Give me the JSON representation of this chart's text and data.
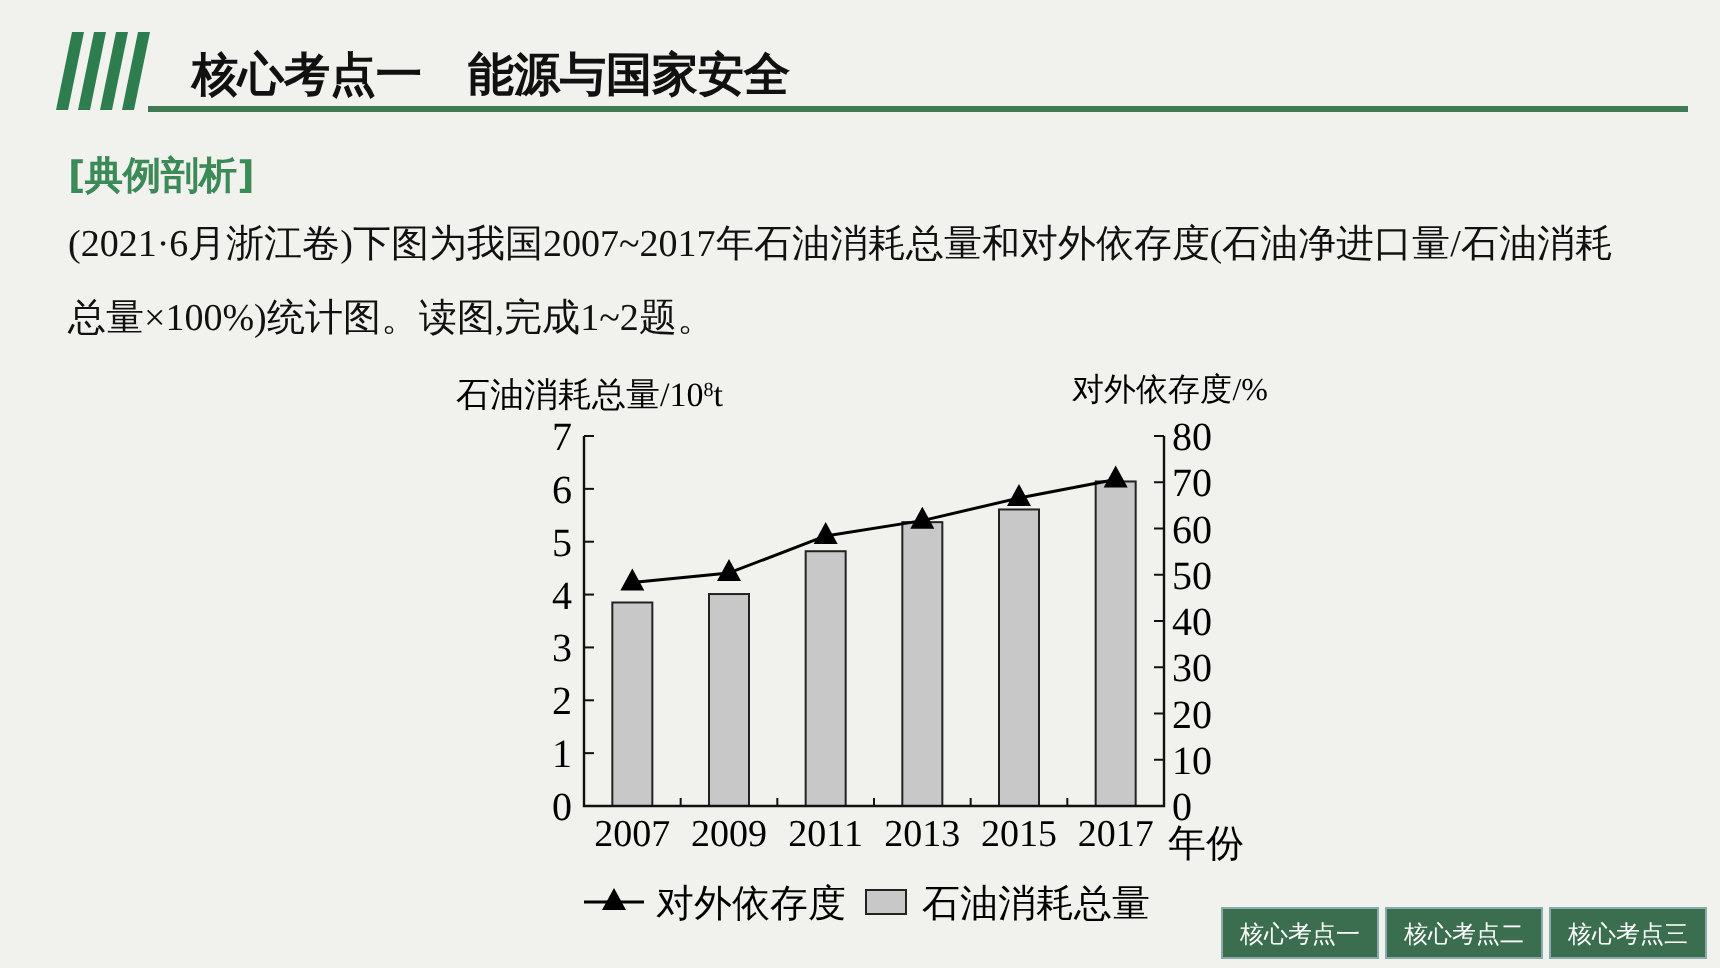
{
  "chart_data": {
    "type": "bar",
    "title": "核心考点一　能源与国家安全",
    "subtitle": "[典例剖析]",
    "annotations": [
      "(2021·6月浙江卷)下图为我国2007~2017年石油消耗总量和对外依存度(石油净进口量/石油消耗总量×100%)统计图。读图,完成1~2题。",
      "核心考点一",
      "核心考点二",
      "核心考点三"
    ],
    "categories": [
      "2007",
      "2009",
      "2011",
      "2013",
      "2015",
      "2017"
    ],
    "series": [
      {
        "name": "对外依存度",
        "type": "line",
        "axis": "y2",
        "color": "#000000",
        "marker": "triangle",
        "values": [
          48.3,
          50.4,
          58.4,
          61.7,
          66.6,
          70.6
        ]
      },
      {
        "name": "石油消耗总量",
        "type": "bar",
        "color": "#c8c8c8",
        "values": [
          3.85,
          4.01,
          4.82,
          5.37,
          5.61,
          6.14
        ]
      }
    ],
    "xlabel": "年份",
    "ylabel": "石油消耗总量/10$^{8}$t",
    "y2label": "对外依存度/%",
    "ylim": [
      0,
      7
    ],
    "yticks": [
      0,
      1,
      2,
      3,
      4,
      5,
      6,
      7
    ],
    "y2lim": [
      0,
      80
    ],
    "y2ticks": [
      0,
      10,
      20,
      30,
      40,
      50,
      60,
      70,
      80
    ],
    "grid": false,
    "legend": "bottom"
  }
}
